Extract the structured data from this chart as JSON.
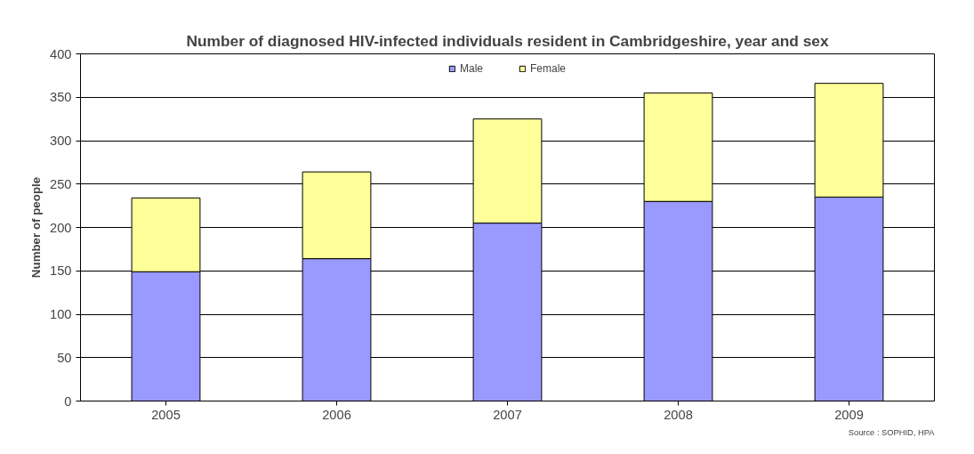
{
  "chart_data": {
    "type": "bar",
    "title": "Number of diagnosed HIV-infected individuals resident in Cambridgeshire, year and sex",
    "ylabel": "Number of people",
    "categories": [
      "2005",
      "2006",
      "2007",
      "2008",
      "2009"
    ],
    "series": [
      {
        "name": "Male",
        "color": "#9999ff",
        "values": [
          149,
          164,
          205,
          230,
          235
        ]
      },
      {
        "name": "Female",
        "color": "#ffff99",
        "values": [
          85,
          100,
          120,
          125,
          131
        ]
      }
    ],
    "stacked": true,
    "ylim": [
      0,
      400
    ],
    "yticks": [
      0,
      50,
      100,
      150,
      200,
      250,
      300,
      350,
      400
    ],
    "grid": "y",
    "legend": "top",
    "annotations": [
      "Source : SOPHID, HPA"
    ]
  }
}
